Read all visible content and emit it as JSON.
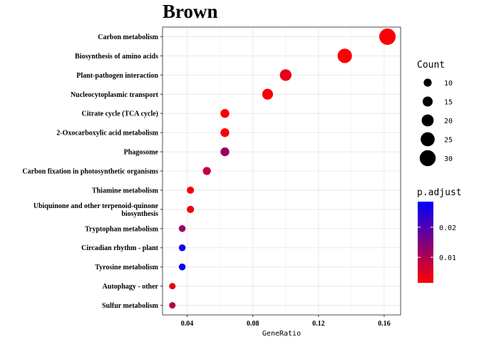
{
  "chart_data": {
    "type": "scatter",
    "title": "Brown",
    "xlabel": "GeneRatio",
    "ylabel": "",
    "xlim": [
      0.025,
      0.17
    ],
    "xticks": [
      0.04,
      0.08,
      0.12,
      0.16
    ],
    "xtick_labels": [
      "0.04",
      "0.08",
      "0.12",
      "0.16"
    ],
    "grid": true,
    "categories": [
      "Carbon metabolism",
      "Biosynthesis of amino acids",
      "Plant-pathogen interaction",
      "Nucleocytoplasmic transport",
      "Citrate cycle (TCA cycle)",
      "2-Oxocarboxylic acid metabolism",
      "Phagosome",
      "Carbon fixation in photosynthetic organisms",
      "Thiamine metabolism",
      "Ubiquinone and other terpenoid-quinone biosynthesis",
      "Tryptophan metabolism",
      "Circadian rhythm - plant",
      "Tyrosine metabolism",
      "Autophagy - other",
      "Sulfur metabolism"
    ],
    "category_lines": [
      [
        "Carbon metabolism"
      ],
      [
        "Biosynthesis of amino acids"
      ],
      [
        "Plant-pathogen interaction"
      ],
      [
        "Nucleocytoplasmic transport"
      ],
      [
        "Citrate cycle (TCA cycle)"
      ],
      [
        "2-Oxocarboxylic acid metabolism"
      ],
      [
        "Phagosome"
      ],
      [
        "Carbon fixation in photosynthetic organisms"
      ],
      [
        "Thiamine metabolism"
      ],
      [
        "Ubiquinone and other terpenoid-quinone",
        "biosynthesis"
      ],
      [
        "Tryptophan metabolism"
      ],
      [
        "Circadian rhythm - plant"
      ],
      [
        "Tyrosine metabolism"
      ],
      [
        "Autophagy - other"
      ],
      [
        "Sulfur metabolism"
      ]
    ],
    "points": [
      {
        "category": "Carbon metabolism",
        "x": 0.162,
        "count": 31,
        "p_adjust": 0.002
      },
      {
        "category": "Biosynthesis of amino acids",
        "x": 0.136,
        "count": 26,
        "p_adjust": 0.002
      },
      {
        "category": "Plant-pathogen interaction",
        "x": 0.1,
        "count": 19,
        "p_adjust": 0.004
      },
      {
        "category": "Nucleocytoplasmic transport",
        "x": 0.089,
        "count": 17,
        "p_adjust": 0.002
      },
      {
        "category": "Citrate cycle (TCA cycle)",
        "x": 0.063,
        "count": 12,
        "p_adjust": 0.002
      },
      {
        "category": "2-Oxocarboxylic acid metabolism",
        "x": 0.063,
        "count": 12,
        "p_adjust": 0.002
      },
      {
        "category": "Phagosome",
        "x": 0.063,
        "count": 12,
        "p_adjust": 0.012
      },
      {
        "category": "Carbon fixation in photosynthetic organisms",
        "x": 0.052,
        "count": 10,
        "p_adjust": 0.008
      },
      {
        "category": "Thiamine metabolism",
        "x": 0.042,
        "count": 8,
        "p_adjust": 0.002
      },
      {
        "category": "Ubiquinone and other terpenoid-quinone biosynthesis",
        "x": 0.042,
        "count": 8,
        "p_adjust": 0.003
      },
      {
        "category": "Tryptophan metabolism",
        "x": 0.037,
        "count": 7,
        "p_adjust": 0.012
      },
      {
        "category": "Circadian rhythm - plant",
        "x": 0.037,
        "count": 7,
        "p_adjust": 0.027
      },
      {
        "category": "Tyrosine metabolism",
        "x": 0.037,
        "count": 7,
        "p_adjust": 0.028
      },
      {
        "category": "Autophagy - other",
        "x": 0.031,
        "count": 6,
        "p_adjust": 0.004
      },
      {
        "category": "Sulfur metabolism",
        "x": 0.031,
        "count": 6,
        "p_adjust": 0.009
      }
    ],
    "size_legend": {
      "title": "Count",
      "values": [
        10,
        15,
        20,
        25,
        30
      ],
      "labels": [
        "10",
        "15",
        "20",
        "25",
        "30"
      ],
      "min": 6,
      "max": 31
    },
    "color_legend": {
      "title": "p.adjust",
      "range": [
        0.0015,
        0.0285
      ],
      "ticks": [
        0.01,
        0.02
      ],
      "tick_labels": [
        "0.01",
        "0.02"
      ],
      "low_color": "#ff0000",
      "high_color": "#0000ff"
    },
    "colors": {
      "point_low": "#ff0000",
      "point_high": "#0000ff",
      "grid": "#ebebeb",
      "panel_border": "#4d4d4d"
    }
  }
}
